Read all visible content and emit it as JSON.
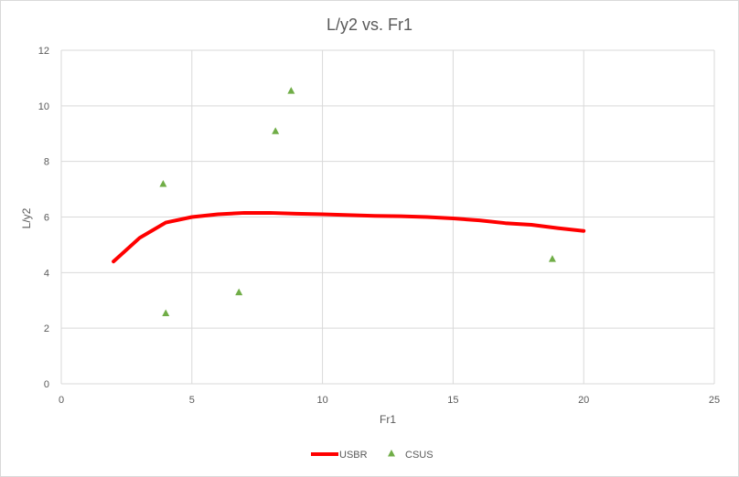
{
  "chart_data": {
    "type": "scatter",
    "title": "L/y2 vs. Fr1",
    "xlabel": "Fr1",
    "ylabel": "L/y2",
    "xlim": [
      0,
      25
    ],
    "ylim": [
      0,
      12
    ],
    "xticks": [
      0,
      5,
      10,
      15,
      20,
      25
    ],
    "yticks": [
      0,
      2,
      4,
      6,
      8,
      10,
      12
    ],
    "grid": true,
    "legend_position": "bottom",
    "series": [
      {
        "name": "USBR",
        "kind": "line",
        "color": "#ff0000",
        "x": [
          2,
          3,
          4,
          5,
          6,
          7,
          8,
          9,
          10,
          11,
          12,
          13,
          14,
          15,
          16,
          17,
          18,
          19,
          20
        ],
        "y": [
          4.4,
          5.25,
          5.8,
          6.0,
          6.1,
          6.15,
          6.15,
          6.12,
          6.1,
          6.07,
          6.04,
          6.03,
          6.0,
          5.95,
          5.88,
          5.78,
          5.72,
          5.6,
          5.5
        ]
      },
      {
        "name": "CSUS",
        "kind": "marker",
        "marker": "triangle",
        "color": "#70ad47",
        "x": [
          3.9,
          4.0,
          6.8,
          8.2,
          8.8,
          18.8
        ],
        "y": [
          7.2,
          2.55,
          3.3,
          9.1,
          10.55,
          4.5
        ]
      }
    ]
  }
}
